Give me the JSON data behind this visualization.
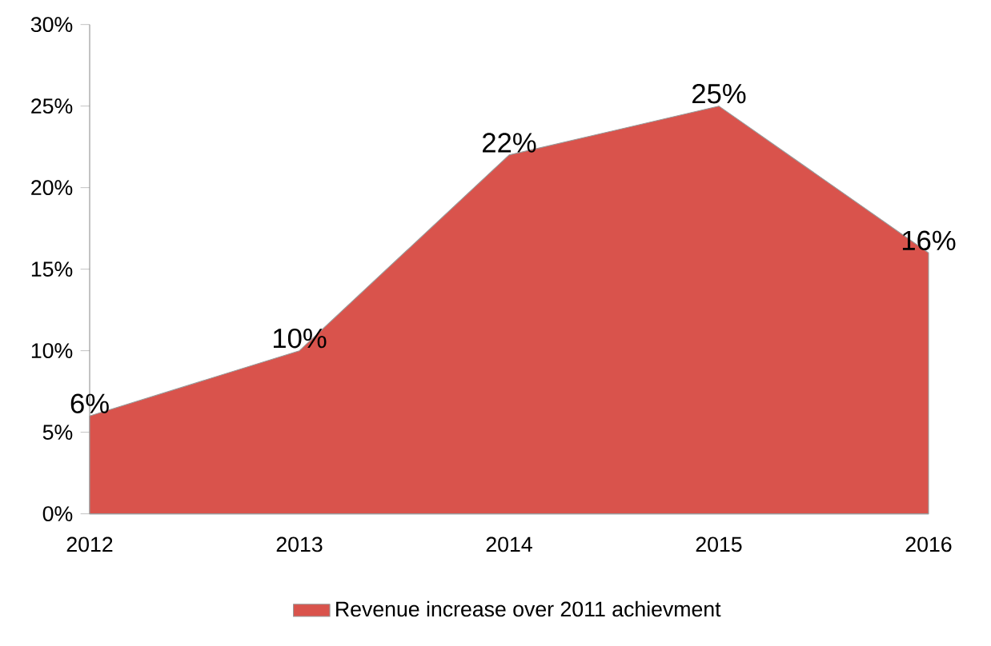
{
  "chart_data": {
    "type": "area",
    "categories": [
      "2012",
      "2013",
      "2014",
      "2015",
      "2016"
    ],
    "series": [
      {
        "name": "Revenue increase over 2011 achievment",
        "color": "#d9534c",
        "values": [
          6,
          10,
          22,
          25,
          16
        ],
        "value_labels": [
          "6%",
          "10%",
          "22%",
          "25%",
          "16%"
        ]
      }
    ],
    "ylim": [
      0,
      30
    ],
    "yticks": [
      {
        "value": 0,
        "label": "0%"
      },
      {
        "value": 5,
        "label": "5%"
      },
      {
        "value": 10,
        "label": "10%"
      },
      {
        "value": 15,
        "label": "15%"
      },
      {
        "value": 20,
        "label": "20%"
      },
      {
        "value": 25,
        "label": "25%"
      },
      {
        "value": 30,
        "label": "30%"
      }
    ],
    "grid": false,
    "legend": "bottom"
  }
}
